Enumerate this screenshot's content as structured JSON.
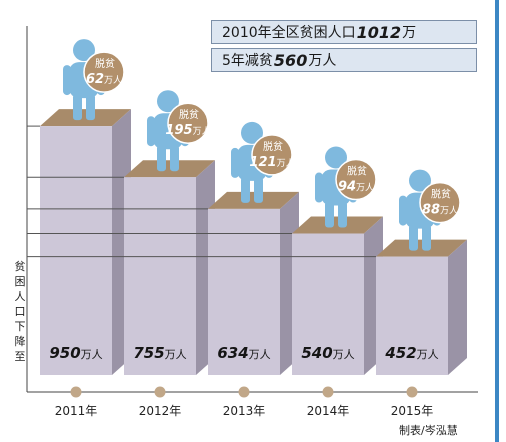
{
  "header": {
    "line1_prefix": "2010年全区贫困人口",
    "line1_value": "1012",
    "line1_suffix": "万",
    "line2_prefix": "5年减贫",
    "line2_value": "560",
    "line2_suffix": "万人"
  },
  "y_axis_label": "贫困人口下降至",
  "credit": "制表/岑泓慧",
  "colors": {
    "bar_front": "#cdc7d8",
    "bar_side": "#9a93a6",
    "bar_top": "#a88b6a",
    "figure": "#7fb9de",
    "badge": "#b2906b",
    "axis_dot": "#c1a788"
  },
  "chart_data": {
    "type": "bar",
    "title": "",
    "xlabel": "",
    "ylabel": "贫困人口下降至",
    "categories": [
      "2011年",
      "2012年",
      "2013年",
      "2014年",
      "2015年"
    ],
    "series": [
      {
        "values": [
          950,
          755,
          634,
          540,
          452
        ],
        "labels": [
          "950",
          "755",
          "634",
          "540",
          "452"
        ],
        "unit": "万人"
      }
    ],
    "reduction": {
      "label": "脱贫",
      "values": [
        62,
        195,
        121,
        94,
        88
      ],
      "labels": [
        "62",
        "195",
        "121",
        "94",
        "88"
      ],
      "unit": "万人"
    }
  }
}
